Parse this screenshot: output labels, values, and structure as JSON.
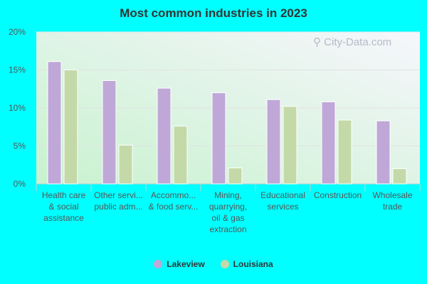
{
  "chart_data": {
    "type": "bar",
    "title": "Most common industries in 2023",
    "categories": [
      [
        "Health care",
        "& social",
        "assistance"
      ],
      [
        "Other servi...",
        "public adm..."
      ],
      [
        "Accommo...",
        "& food serv..."
      ],
      [
        "Mining,",
        "quarrying,",
        "oil & gas",
        "extraction"
      ],
      [
        "Educational",
        "services"
      ],
      [
        "Construction"
      ],
      [
        "Wholesale",
        "trade"
      ]
    ],
    "series": [
      {
        "name": "Lakeview",
        "color": "#bfa8d8",
        "values": [
          16.1,
          13.6,
          12.6,
          12.0,
          11.1,
          10.8,
          8.3
        ]
      },
      {
        "name": "Louisiana",
        "color": "#c4d9a8",
        "values": [
          15.0,
          5.1,
          7.6,
          2.1,
          10.2,
          8.4,
          2.0
        ]
      }
    ],
    "yticks": [
      "0%",
      "5%",
      "10%",
      "15%",
      "20%"
    ],
    "ylim": [
      0,
      20
    ],
    "grid": true,
    "legend": "bottom"
  },
  "watermark": "City-Data.com"
}
